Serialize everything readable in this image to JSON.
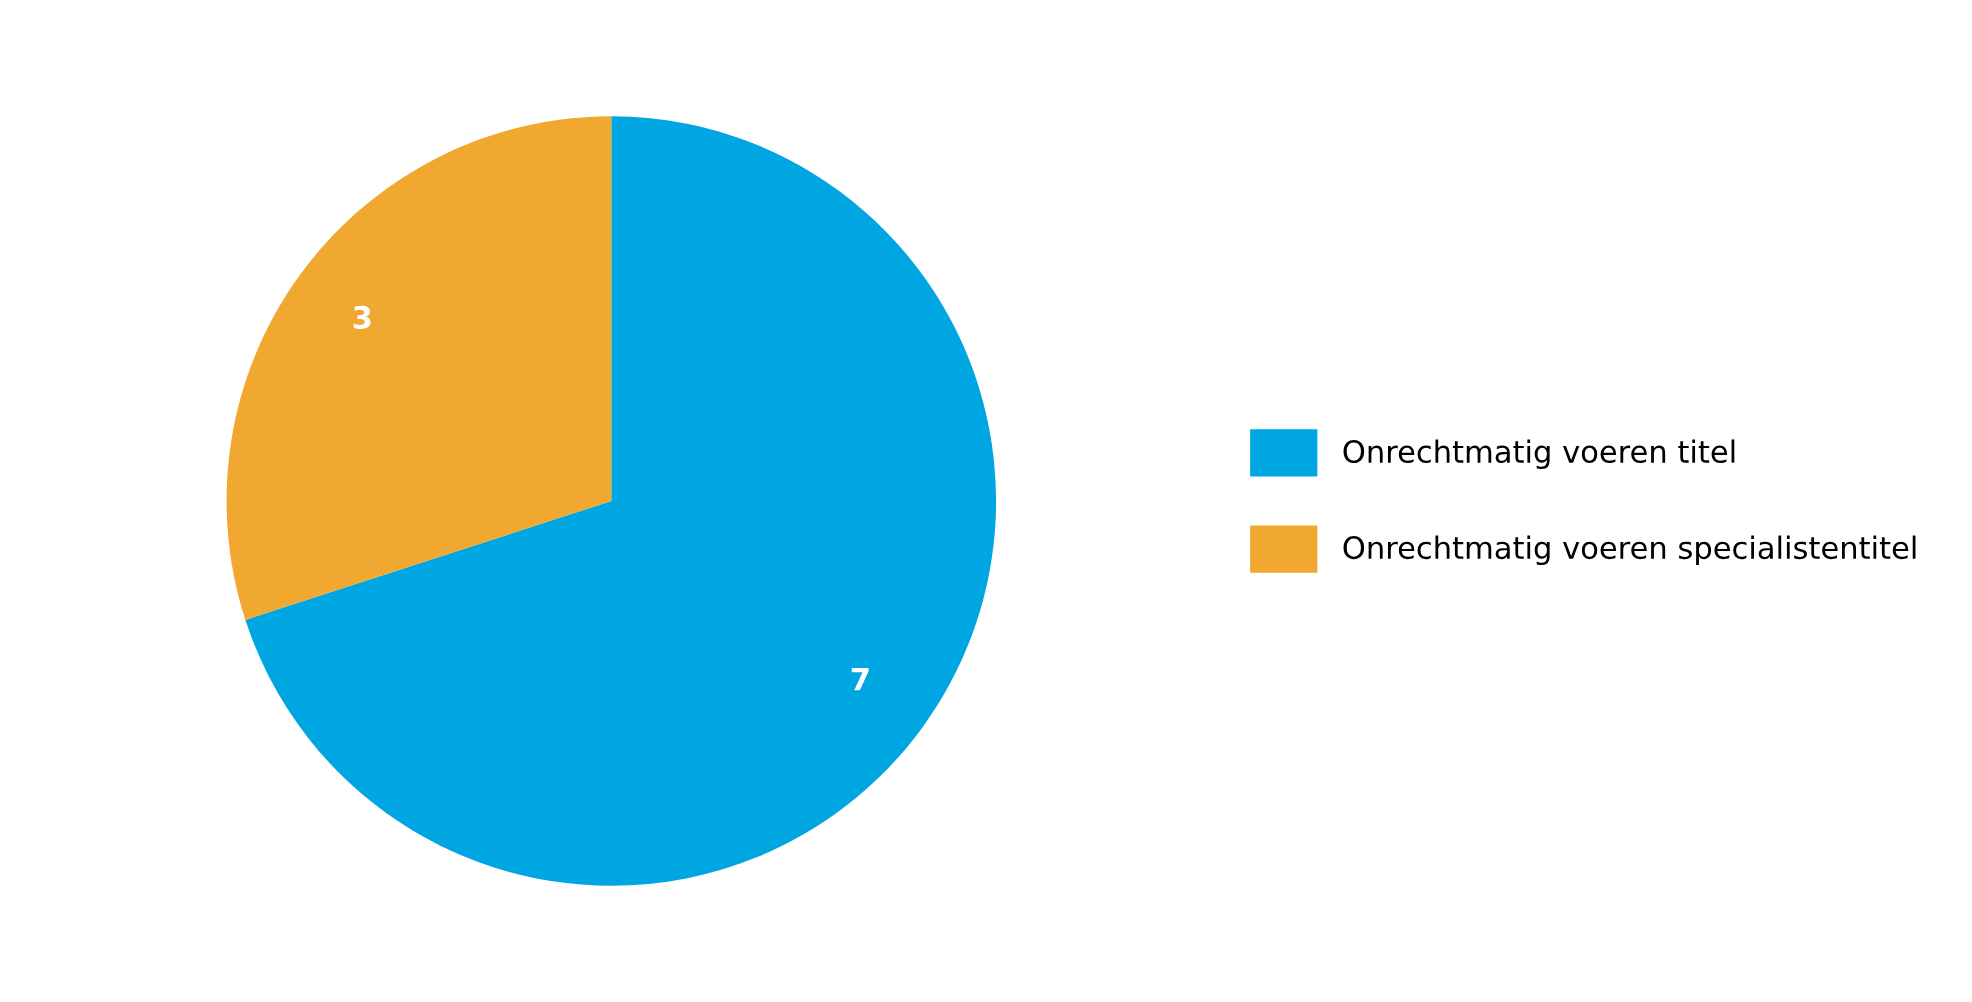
{
  "chart_data": {
    "type": "pie",
    "categories": [
      "Onrechtmatig voeren titel",
      "Onrechtmatig voeren specialistentitel"
    ],
    "values": [
      7,
      3
    ],
    "colors": [
      "#00a6e2",
      "#f0a830"
    ],
    "data_labels": true,
    "legend": "right"
  }
}
